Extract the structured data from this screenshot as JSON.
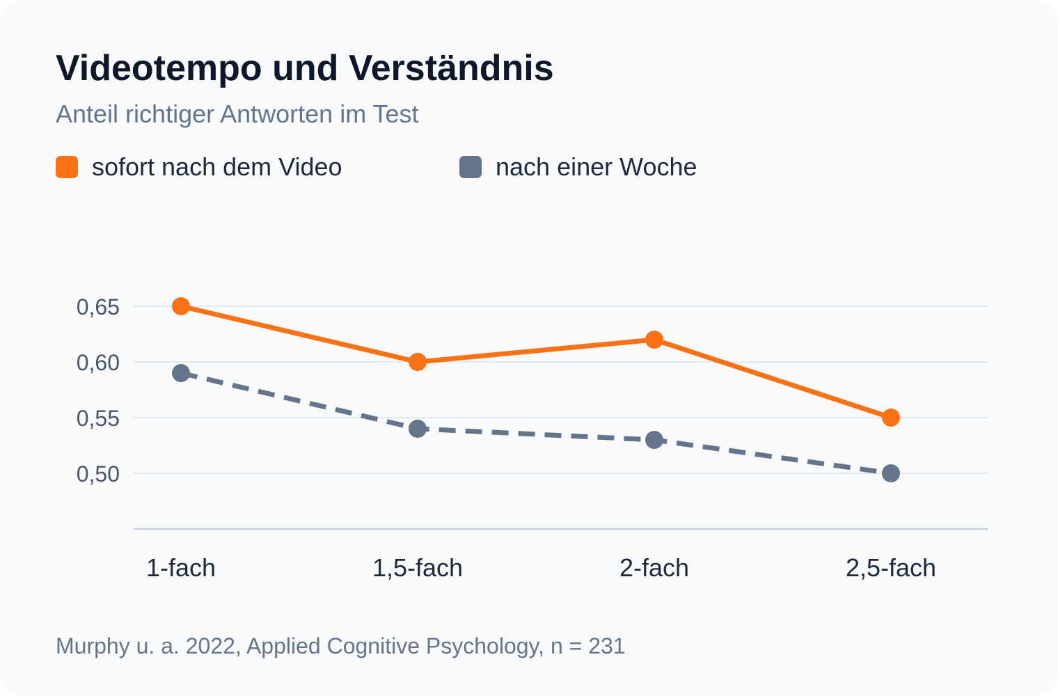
{
  "header": {
    "title": "Videotempo und Verständnis",
    "subtitle": "Anteil richtiger Antworten im Test"
  },
  "legend": [
    {
      "label": "sofort nach dem Video",
      "color": "#f97316"
    },
    {
      "label": "nach einer Woche",
      "color": "#64748b"
    }
  ],
  "footer": {
    "source": "Murphy u. a. 2022, Applied Cognitive Psychology, n = 231"
  },
  "colors": {
    "accent": "#f97316",
    "secondary": "#64748b",
    "grid": "#e2e8f0",
    "axis": "#cbd5e1"
  },
  "chart_data": {
    "type": "line",
    "title": "Videotempo und Verständnis",
    "subtitle": "Anteil richtiger Antworten im Test",
    "categories": [
      "1-fach",
      "1,5-fach",
      "2-fach",
      "2,5-fach"
    ],
    "yticks": [
      0.5,
      0.55,
      0.6,
      0.65
    ],
    "ytick_labels": [
      "0,50",
      "0,55",
      "0,60",
      "0,65"
    ],
    "ylim": [
      0.45,
      0.65
    ],
    "grid": true,
    "legend_position": "top-left",
    "series": [
      {
        "name": "sofort nach dem Video",
        "values": [
          0.65,
          0.6,
          0.62,
          0.55
        ],
        "color": "#f97316",
        "line_style": "solid"
      },
      {
        "name": "nach einer Woche",
        "values": [
          0.59,
          0.54,
          0.53,
          0.5
        ],
        "color": "#64748b",
        "line_style": "dashed"
      }
    ]
  }
}
